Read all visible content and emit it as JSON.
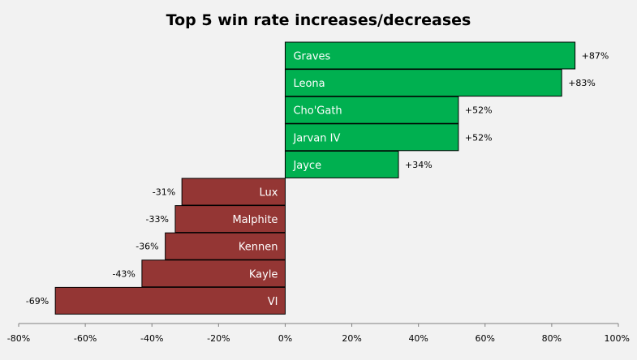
{
  "chart_data": {
    "type": "bar",
    "orientation": "horizontal",
    "title": "Top 5 win rate increases/decreases",
    "categories": [
      "Graves",
      "Leona",
      "Cho'Gath",
      "Jarvan IV",
      "Jayce",
      "Lux",
      "Malphite",
      "Kennen",
      "Kayle",
      "VI"
    ],
    "values": [
      87,
      83,
      52,
      52,
      34,
      -31,
      -33,
      -36,
      -43,
      -69
    ],
    "value_labels": [
      "+87%",
      "+83%",
      "+52%",
      "+52%",
      "+34%",
      "-31%",
      "-33%",
      "-36%",
      "-43%",
      "-69%"
    ],
    "xlim": [
      -80,
      100
    ],
    "x_ticks": [
      -80,
      -60,
      -40,
      -20,
      0,
      20,
      40,
      60,
      80,
      100
    ],
    "x_tick_labels": [
      "-80%",
      "-60%",
      "-40%",
      "-20%",
      "0%",
      "20%",
      "40%",
      "60%",
      "80%",
      "100%"
    ],
    "grid": false,
    "colors": {
      "positive": "#00b050",
      "negative": "#943634",
      "bar_text": "#ffffff",
      "axis": "#808080"
    }
  }
}
